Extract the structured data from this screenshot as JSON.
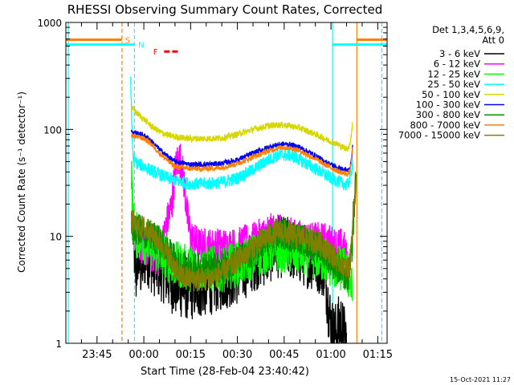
{
  "chart_data": {
    "type": "line",
    "title": "RHESSI Observing Summary Count Rates, Corrected",
    "xlabel": "Start Time (28-Feb-04 23:40:42)",
    "ylabel": "Corrected Count Rate (s⁻¹ detector⁻¹)",
    "yscale": "log",
    "ylim": [
      1,
      1000
    ],
    "xlim_minutes": [
      -5,
      98
    ],
    "x_unit": "minutes after 23:40",
    "grid": false,
    "legend_placement": "right",
    "legend_header": [
      "Det 1,3,4,5,6,9,",
      "Att 0"
    ],
    "footer_timestamp": "15-Oct-2021 11:27",
    "x_ticks": [
      {
        "label": "23:45",
        "x": 5
      },
      {
        "label": "00:00",
        "x": 20
      },
      {
        "label": "00:15",
        "x": 35
      },
      {
        "label": "00:30",
        "x": 50
      },
      {
        "label": "00:45",
        "x": 65
      },
      {
        "label": "01:00",
        "x": 80
      },
      {
        "label": "01:15",
        "x": 95
      }
    ],
    "y_ticks": [
      {
        "label": "1",
        "y": 1
      },
      {
        "label": "10",
        "y": 10
      },
      {
        "label": "100",
        "y": 100
      },
      {
        "label": "1000",
        "y": 1000
      }
    ],
    "series": [
      {
        "name": "3 - 6 keV",
        "color": "#000000",
        "noise": 0.3,
        "points": [
          [
            16.5,
            12
          ],
          [
            17,
            7
          ],
          [
            17.5,
            4
          ],
          [
            18,
            7
          ],
          [
            19,
            5
          ],
          [
            20,
            6
          ],
          [
            21,
            7
          ],
          [
            22,
            6
          ],
          [
            23,
            5.5
          ],
          [
            25,
            5
          ],
          [
            27,
            4.5
          ],
          [
            28,
            4
          ],
          [
            30,
            3.5
          ],
          [
            35,
            3.2
          ],
          [
            40,
            3.5
          ],
          [
            45,
            4
          ],
          [
            50,
            4.5
          ],
          [
            52,
            5
          ],
          [
            55,
            6
          ],
          [
            60,
            7
          ],
          [
            62,
            8
          ],
          [
            65,
            8
          ],
          [
            68,
            7.5
          ],
          [
            70,
            7
          ],
          [
            72,
            6.5
          ],
          [
            75,
            6
          ],
          [
            77,
            5.5
          ],
          [
            78,
            5
          ],
          [
            79,
            2.5
          ],
          [
            80,
            1.5
          ],
          [
            81,
            1.2
          ],
          [
            82,
            1.3
          ],
          [
            83,
            1.6
          ],
          [
            84,
            1.2
          ],
          [
            85,
            1.1
          ]
        ]
      },
      {
        "name": "6 - 12 keV",
        "color": "#ff00ff",
        "noise": 0.18,
        "points": [
          [
            16.5,
            12
          ],
          [
            18,
            9
          ],
          [
            20,
            8
          ],
          [
            22,
            7
          ],
          [
            24,
            6.5
          ],
          [
            25,
            6
          ],
          [
            27,
            12
          ],
          [
            29,
            20
          ],
          [
            30,
            40
          ],
          [
            31,
            55
          ],
          [
            32,
            50
          ],
          [
            33,
            30
          ],
          [
            34,
            15
          ],
          [
            35,
            10
          ],
          [
            36,
            9
          ],
          [
            38,
            8
          ],
          [
            40,
            8
          ],
          [
            45,
            8
          ],
          [
            50,
            8
          ],
          [
            52,
            8.5
          ],
          [
            55,
            9
          ],
          [
            58,
            10
          ],
          [
            60,
            11
          ],
          [
            65,
            10.5
          ],
          [
            70,
            9.5
          ],
          [
            75,
            9
          ],
          [
            78,
            9
          ],
          [
            80,
            8.5
          ],
          [
            82,
            8
          ],
          [
            84,
            8
          ],
          [
            85,
            6
          ],
          [
            86,
            5
          ]
        ]
      },
      {
        "name": "12 - 25 keV",
        "color": "#00ff00",
        "noise": 0.22,
        "points": [
          [
            16,
            40
          ],
          [
            16.3,
            25
          ],
          [
            16.6,
            15
          ],
          [
            17,
            11
          ],
          [
            18,
            10
          ],
          [
            20,
            9
          ],
          [
            22,
            8.5
          ],
          [
            25,
            7
          ],
          [
            28,
            6
          ],
          [
            30,
            5.5
          ],
          [
            35,
            5
          ],
          [
            40,
            5
          ],
          [
            45,
            5
          ],
          [
            50,
            5.5
          ],
          [
            53,
            6
          ],
          [
            55,
            6.5
          ],
          [
            58,
            7
          ],
          [
            60,
            7.5
          ],
          [
            65,
            7.5
          ],
          [
            70,
            7
          ],
          [
            75,
            6.5
          ],
          [
            78,
            6
          ],
          [
            80,
            5.5
          ],
          [
            82,
            5
          ],
          [
            84,
            5
          ],
          [
            86,
            4
          ],
          [
            87,
            2.8
          ]
        ]
      },
      {
        "name": "25 - 50 keV",
        "color": "#00ffff",
        "noise": 0.06,
        "points": [
          [
            15.8,
            300
          ],
          [
            16,
            150
          ],
          [
            16.3,
            80
          ],
          [
            16.6,
            55
          ],
          [
            17,
            50
          ],
          [
            18,
            48
          ],
          [
            20,
            45
          ],
          [
            22,
            42
          ],
          [
            25,
            38
          ],
          [
            28,
            35
          ],
          [
            30,
            33
          ],
          [
            35,
            31
          ],
          [
            40,
            31
          ],
          [
            45,
            32
          ],
          [
            50,
            35
          ],
          [
            55,
            42
          ],
          [
            60,
            52
          ],
          [
            63,
            57
          ],
          [
            65,
            58
          ],
          [
            67,
            57
          ],
          [
            70,
            52
          ],
          [
            75,
            43
          ],
          [
            78,
            38
          ],
          [
            80,
            35
          ],
          [
            82,
            33
          ],
          [
            83,
            32
          ],
          [
            84,
            31
          ],
          [
            85,
            30
          ],
          [
            86,
            33
          ],
          [
            87,
            50
          ]
        ]
      },
      {
        "name": "50 - 100 keV",
        "color": "#d7d700",
        "noise": 0.03,
        "points": [
          [
            16,
            160
          ],
          [
            17,
            150
          ],
          [
            18,
            140
          ],
          [
            20,
            125
          ],
          [
            22,
            110
          ],
          [
            25,
            95
          ],
          [
            28,
            88
          ],
          [
            30,
            85
          ],
          [
            35,
            82
          ],
          [
            40,
            82
          ],
          [
            45,
            83
          ],
          [
            50,
            90
          ],
          [
            55,
            100
          ],
          [
            60,
            108
          ],
          [
            63,
            110
          ],
          [
            65,
            110
          ],
          [
            67,
            108
          ],
          [
            70,
            103
          ],
          [
            75,
            90
          ],
          [
            78,
            82
          ],
          [
            80,
            77
          ],
          [
            82,
            73
          ],
          [
            83,
            70
          ],
          [
            84,
            68
          ],
          [
            85,
            66
          ],
          [
            86,
            70
          ],
          [
            86.5,
            90
          ],
          [
            87,
            120
          ]
        ]
      },
      {
        "name": "100 - 300 keV",
        "color": "#0000ff",
        "noise": 0.025,
        "points": [
          [
            16,
            95
          ],
          [
            17,
            94
          ],
          [
            18,
            92
          ],
          [
            20,
            88
          ],
          [
            22,
            80
          ],
          [
            25,
            65
          ],
          [
            28,
            55
          ],
          [
            30,
            50
          ],
          [
            35,
            47
          ],
          [
            40,
            47
          ],
          [
            45,
            48
          ],
          [
            50,
            52
          ],
          [
            55,
            60
          ],
          [
            60,
            68
          ],
          [
            63,
            72
          ],
          [
            65,
            73
          ],
          [
            67,
            72
          ],
          [
            70,
            68
          ],
          [
            75,
            57
          ],
          [
            78,
            50
          ],
          [
            80,
            47
          ],
          [
            82,
            44
          ],
          [
            84,
            42
          ],
          [
            85,
            41
          ],
          [
            86,
            42
          ],
          [
            86.5,
            50
          ],
          [
            87,
            70
          ]
        ]
      },
      {
        "name": "300 - 800 keV",
        "color": "#009000",
        "noise": 0.15,
        "points": [
          [
            16,
            13
          ],
          [
            17,
            12
          ],
          [
            18,
            11.5
          ],
          [
            20,
            11
          ],
          [
            22,
            10
          ],
          [
            25,
            9
          ],
          [
            28,
            7
          ],
          [
            30,
            6
          ],
          [
            32,
            5.2
          ],
          [
            35,
            5
          ],
          [
            40,
            5
          ],
          [
            45,
            5.2
          ],
          [
            50,
            6
          ],
          [
            53,
            6.5
          ],
          [
            55,
            7
          ],
          [
            60,
            9
          ],
          [
            63,
            10
          ],
          [
            65,
            10.5
          ],
          [
            67,
            10
          ],
          [
            70,
            9.5
          ],
          [
            75,
            8
          ],
          [
            78,
            7
          ],
          [
            80,
            6
          ],
          [
            82,
            5
          ],
          [
            84,
            4.5
          ],
          [
            85,
            4
          ],
          [
            86,
            4.5
          ],
          [
            87,
            10
          ],
          [
            88,
            40
          ]
        ]
      },
      {
        "name": "800 - 7000 keV",
        "color": "#ff8000",
        "noise": 0.025,
        "points": [
          [
            16,
            88
          ],
          [
            17,
            87
          ],
          [
            18,
            85
          ],
          [
            20,
            82
          ],
          [
            22,
            75
          ],
          [
            25,
            60
          ],
          [
            28,
            50
          ],
          [
            30,
            45
          ],
          [
            35,
            43
          ],
          [
            40,
            43
          ],
          [
            45,
            44
          ],
          [
            50,
            48
          ],
          [
            55,
            55
          ],
          [
            60,
            63
          ],
          [
            63,
            67
          ],
          [
            65,
            68
          ],
          [
            67,
            67
          ],
          [
            70,
            63
          ],
          [
            75,
            53
          ],
          [
            78,
            47
          ],
          [
            80,
            44
          ],
          [
            82,
            41
          ],
          [
            84,
            39
          ],
          [
            85,
            38
          ],
          [
            86,
            40
          ],
          [
            86.5,
            50
          ],
          [
            87,
            70
          ]
        ]
      },
      {
        "name": "7000 - 15000 keV",
        "color": "#808000",
        "noise": 0.12,
        "points": [
          [
            16,
            14
          ],
          [
            17,
            13
          ],
          [
            18,
            12.5
          ],
          [
            20,
            12
          ],
          [
            22,
            11
          ],
          [
            25,
            9
          ],
          [
            28,
            6.5
          ],
          [
            30,
            5
          ],
          [
            32,
            4.2
          ],
          [
            35,
            4
          ],
          [
            40,
            4
          ],
          [
            45,
            4.5
          ],
          [
            50,
            6
          ],
          [
            53,
            7
          ],
          [
            55,
            8
          ],
          [
            60,
            10
          ],
          [
            63,
            11
          ],
          [
            65,
            11
          ],
          [
            67,
            10.5
          ],
          [
            70,
            10
          ],
          [
            75,
            9
          ],
          [
            78,
            8
          ],
          [
            80,
            7
          ],
          [
            82,
            6
          ],
          [
            84,
            5.5
          ],
          [
            85,
            5
          ],
          [
            86,
            5
          ],
          [
            86.5,
            8
          ],
          [
            87,
            15
          ],
          [
            88,
            30
          ]
        ]
      }
    ],
    "vertical_markers": [
      {
        "x": -4.2,
        "color": "#00ffff",
        "style": "solid"
      },
      {
        "x": 13.0,
        "color": "#ff8000",
        "style": "dashed"
      },
      {
        "x": 17.0,
        "color": "#00ffff",
        "style": "dashed"
      },
      {
        "x": 80.5,
        "color": "#00ffff",
        "style": "solid"
      },
      {
        "x": 88.3,
        "color": "#ff8000",
        "style": "solid"
      },
      {
        "x": 96.3,
        "color": "#00ffff",
        "style": "dashed"
      }
    ],
    "flag_bars": [
      {
        "label": "S",
        "color": "#ff8000",
        "segments": [
          [
            -5,
            13.0
          ],
          [
            88.3,
            98
          ]
        ],
        "label_x": 14.0,
        "y": 690
      },
      {
        "label": "N",
        "color": "#00ffff",
        "segments": [
          [
            -5,
            17.0
          ],
          [
            80.5,
            98
          ]
        ],
        "label_x": 18.2,
        "y": 620
      },
      {
        "label": "F",
        "color": "#ff0000",
        "segments": [
          [
            26.5,
            31.5
          ]
        ],
        "label_x": 23.0,
        "y": 535,
        "dashed": true
      }
    ]
  }
}
